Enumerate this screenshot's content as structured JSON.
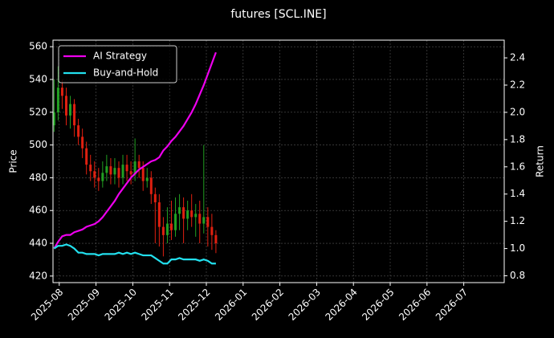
{
  "chart_data": {
    "type": "candlestick",
    "title": "futures [SCL.INE]",
    "ylabel": "Price",
    "y2label": "Return",
    "grid": true,
    "legend": "upper-left",
    "xlim": [
      0.83,
      13.1
    ],
    "xticks": [
      {
        "value": 1,
        "label": "2025-08"
      },
      {
        "value": 2,
        "label": "2025-09"
      },
      {
        "value": 3,
        "label": "2025-10"
      },
      {
        "value": 4,
        "label": "2025-11"
      },
      {
        "value": 5,
        "label": "2025-12"
      },
      {
        "value": 6,
        "label": "2026-01"
      },
      {
        "value": 7,
        "label": "2026-02"
      },
      {
        "value": 8,
        "label": "2026-03"
      },
      {
        "value": 9,
        "label": "2026-04"
      },
      {
        "value": 10,
        "label": "2026-05"
      },
      {
        "value": 11,
        "label": "2026-06"
      },
      {
        "value": 12,
        "label": "2026-07"
      }
    ],
    "ylim": [
      416,
      564
    ],
    "yticks": [
      420,
      440,
      460,
      480,
      500,
      520,
      540,
      560
    ],
    "y2lim": [
      0.75,
      2.53
    ],
    "y2ticks": [
      0.8,
      {
        "value": 1,
        "label": "1.0"
      },
      1.2,
      1.4,
      1.6,
      1.8,
      {
        "value": 2,
        "label": "2.0"
      },
      2.2,
      2.4
    ],
    "x": [
      0.86,
      0.97,
      1.08,
      1.19,
      1.3,
      1.41,
      1.52,
      1.63,
      1.74,
      1.85,
      1.96,
      2.07,
      2.18,
      2.29,
      2.4,
      2.51,
      2.62,
      2.73,
      2.84,
      2.95,
      3.06,
      3.17,
      3.28,
      3.39,
      3.5,
      3.61,
      3.72,
      3.83,
      3.94,
      4.05,
      4.16,
      4.27,
      4.38,
      4.49,
      4.6,
      4.71,
      4.82,
      4.93,
      5.04,
      5.15,
      5.26
    ],
    "up_color": "#22a022",
    "down_color": "#e02010",
    "open": [
      512,
      520,
      535,
      530,
      518,
      525,
      512,
      505,
      498,
      488,
      484,
      480,
      478,
      483,
      487,
      482,
      486,
      480,
      488,
      484,
      482,
      490,
      486,
      478,
      480,
      470,
      465,
      450,
      445,
      452,
      448,
      458,
      462,
      455,
      460,
      456,
      458,
      452,
      456,
      450,
      445
    ],
    "high": [
      540,
      548,
      540,
      535,
      530,
      528,
      516,
      510,
      502,
      494,
      490,
      486,
      490,
      494,
      492,
      492,
      490,
      494,
      494,
      490,
      504,
      494,
      490,
      486,
      484,
      474,
      470,
      456,
      462,
      466,
      468,
      470,
      468,
      466,
      470,
      464,
      466,
      500,
      462,
      458,
      448
    ],
    "low": [
      508,
      515,
      522,
      512,
      510,
      505,
      500,
      492,
      482,
      478,
      474,
      472,
      474,
      478,
      476,
      476,
      474,
      476,
      478,
      476,
      478,
      480,
      472,
      474,
      464,
      440,
      438,
      432,
      440,
      442,
      444,
      448,
      440,
      448,
      450,
      444,
      440,
      446,
      438,
      436,
      434
    ],
    "close": [
      520,
      535,
      530,
      518,
      525,
      512,
      505,
      498,
      488,
      484,
      480,
      478,
      483,
      487,
      482,
      486,
      480,
      488,
      484,
      482,
      490,
      486,
      478,
      480,
      470,
      465,
      450,
      445,
      452,
      448,
      458,
      462,
      455,
      460,
      456,
      458,
      452,
      456,
      450,
      445,
      440
    ],
    "series": [
      {
        "name": "AI Strategy",
        "color": "#ee00ee",
        "axis": "y2",
        "values": [
          1.0,
          1.05,
          1.09,
          1.1,
          1.1,
          1.12,
          1.13,
          1.14,
          1.16,
          1.17,
          1.18,
          1.2,
          1.23,
          1.27,
          1.31,
          1.35,
          1.4,
          1.44,
          1.48,
          1.52,
          1.55,
          1.58,
          1.6,
          1.62,
          1.64,
          1.65,
          1.67,
          1.72,
          1.75,
          1.79,
          1.82,
          1.86,
          1.9,
          1.95,
          2.0,
          2.06,
          2.13,
          2.2,
          2.28,
          2.36,
          2.44
        ]
      },
      {
        "name": "Buy-and-Hold",
        "color": "#22e0ee",
        "axis": "y2",
        "values": [
          1.0,
          1.02,
          1.02,
          1.03,
          1.02,
          1.0,
          0.97,
          0.97,
          0.96,
          0.96,
          0.96,
          0.95,
          0.96,
          0.96,
          0.96,
          0.96,
          0.97,
          0.96,
          0.97,
          0.96,
          0.97,
          0.96,
          0.95,
          0.95,
          0.95,
          0.93,
          0.91,
          0.89,
          0.89,
          0.92,
          0.92,
          0.93,
          0.92,
          0.92,
          0.92,
          0.92,
          0.91,
          0.92,
          0.91,
          0.89,
          0.89
        ]
      }
    ]
  }
}
